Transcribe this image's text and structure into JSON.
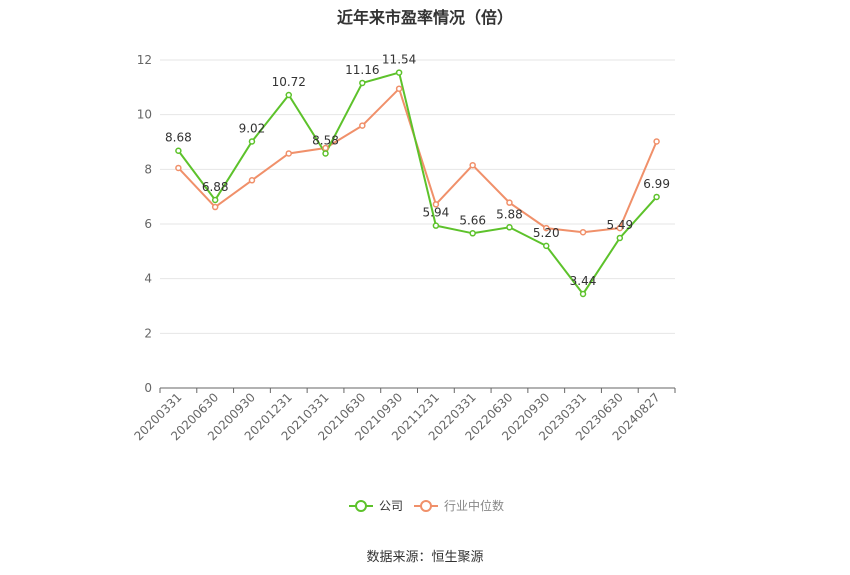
{
  "title": "近年来市盈率情况（倍）",
  "source": "数据来源：恒生聚源",
  "chart_data": {
    "type": "line",
    "title": "近年来市盈率情况（倍）",
    "categories": [
      "20200331",
      "20200630",
      "20200930",
      "20201231",
      "20210331",
      "20210630",
      "20210930",
      "20211231",
      "20220331",
      "20220630",
      "20220930",
      "20230331",
      "20230630",
      "20240827"
    ],
    "ylim": [
      0,
      12
    ],
    "yticks": [
      0,
      2,
      4,
      6,
      8,
      10,
      12
    ],
    "grid": true,
    "legend_position": "bottom",
    "series": [
      {
        "name": "公司",
        "color": "#5dc22b",
        "values": [
          8.68,
          6.88,
          9.02,
          10.72,
          8.58,
          11.16,
          11.54,
          5.94,
          5.66,
          5.88,
          5.2,
          3.44,
          5.49,
          6.99
        ],
        "labels": [
          "8.68",
          "6.88",
          "9.02",
          "10.72",
          "8.58",
          "11.16",
          "11.54",
          "5.94",
          "5.66",
          "5.88",
          "5.20",
          "3.44",
          "5.49",
          "6.99"
        ]
      },
      {
        "name": "行业中位数",
        "color": "#f0906a",
        "values": [
          8.05,
          6.62,
          7.6,
          8.58,
          8.78,
          9.6,
          10.95,
          6.72,
          8.15,
          6.78,
          5.85,
          5.7,
          5.85,
          9.02
        ]
      }
    ]
  }
}
